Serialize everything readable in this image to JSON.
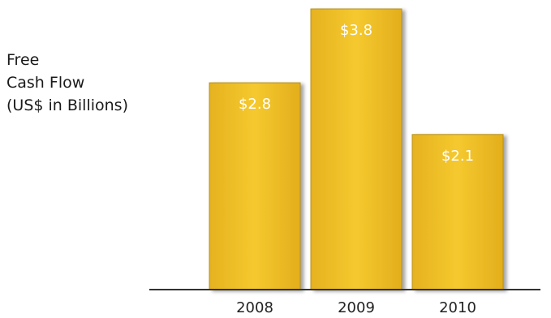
{
  "chart_data": {
    "type": "bar",
    "ylabel_lines": [
      "Free",
      "Cash Flow",
      "(US$ in Billions)"
    ],
    "categories": [
      "2008",
      "2009",
      "2010"
    ],
    "values": [
      2.8,
      3.8,
      2.1
    ],
    "data_labels": [
      "$2.8",
      "$3.8",
      "$2.1"
    ],
    "ylim": [
      0,
      3.8
    ],
    "grid": false,
    "legend": "none",
    "colors": {
      "bar": "#F2C12E",
      "bar_edge": "#B8921A",
      "axis": "#333333",
      "label": "#FFFFFF"
    }
  }
}
